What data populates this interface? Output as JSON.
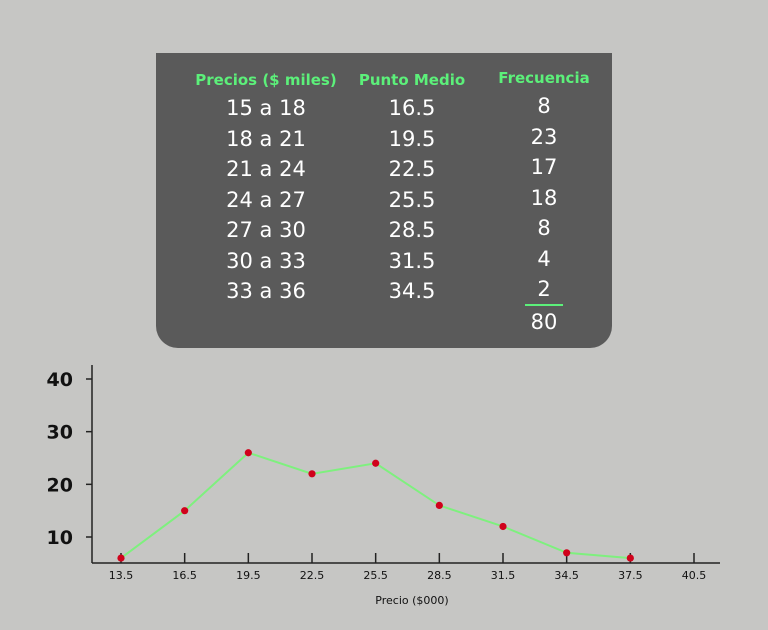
{
  "table": {
    "headers": {
      "precios": "Precios ($ miles)",
      "punto_medio": "Punto Medio",
      "frecuencia": "Frecuencia"
    },
    "rows": [
      {
        "rango": "15 a 18",
        "punto": "16.5",
        "freq": "8"
      },
      {
        "rango": "18 a 21",
        "punto": "19.5",
        "freq": "23"
      },
      {
        "rango": "21 a 24",
        "punto": "22.5",
        "freq": "17"
      },
      {
        "rango": "24 a 27",
        "punto": "25.5",
        "freq": "18"
      },
      {
        "rango": "27 a 30",
        "punto": "28.5",
        "freq": "8"
      },
      {
        "rango": "30 a 33",
        "punto": "31.5",
        "freq": "4"
      },
      {
        "rango": "33 a 36",
        "punto": "34.5",
        "freq": "2"
      }
    ],
    "total": "80"
  },
  "chart_data": {
    "type": "line",
    "title": "",
    "xlabel": "Precio ($000)",
    "ylabel": "",
    "x_ticks": [
      "13.5",
      "16.5",
      "19.5",
      "22.5",
      "25.5",
      "28.5",
      "31.5",
      "34.5",
      "37.5",
      "40.5"
    ],
    "y_ticks": [
      "10",
      "20",
      "30",
      "40"
    ],
    "xlim": [
      13.5,
      40.5
    ],
    "ylim": [
      5,
      42
    ],
    "series": [
      {
        "x": [
          13.5,
          16.5,
          19.5,
          22.5,
          25.5,
          28.5,
          31.5,
          34.5,
          37.5
        ],
        "y": [
          6,
          15,
          26,
          22,
          24,
          16,
          12,
          7,
          6
        ]
      }
    ],
    "grid": false,
    "line_color": "#7ef07e",
    "marker_color": "#d0021b",
    "axis_color": "#222222"
  }
}
